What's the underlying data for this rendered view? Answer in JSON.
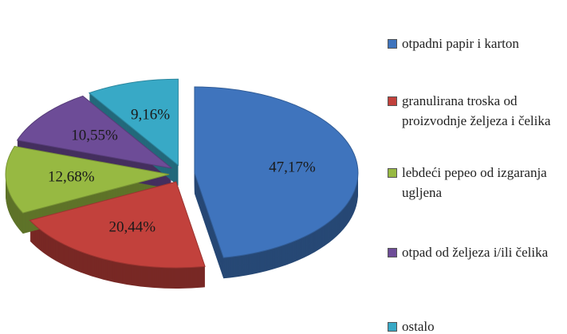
{
  "chart_data": {
    "type": "pie",
    "categories": [
      "otpadni papir i karton",
      "granulirana troska od proizvodnje željeza i čelika",
      "lebdeći pepeo od izgaranja ugljena",
      "otpad od željeza i/ili čelika",
      "ostalo"
    ],
    "values": [
      47.17,
      20.44,
      12.68,
      10.55,
      9.16
    ],
    "value_labels": [
      "47,17%",
      "20,44%",
      "12,68%",
      "10,55%",
      "9,16%"
    ],
    "colors": [
      "#3f74bd",
      "#c2413c",
      "#97b942",
      "#6d4c97",
      "#38a9c6"
    ],
    "legend": "right"
  }
}
